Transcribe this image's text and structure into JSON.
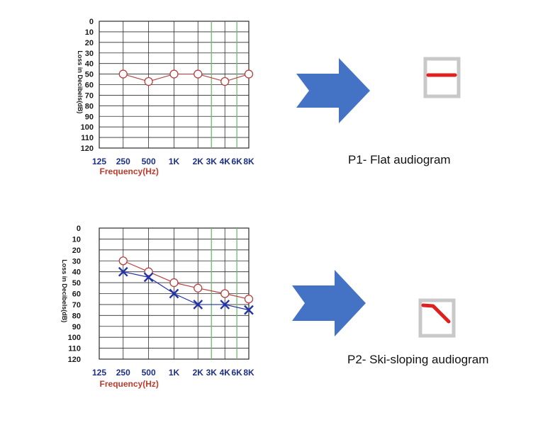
{
  "colors": {
    "grid": "#2b2b2b",
    "green_line": "#6abf69",
    "right_ear": "#b84040",
    "left_ear": "#2233aa",
    "arrow": "#4472c4",
    "icon_frame": "#c8c8c8",
    "icon_line": "#e02020",
    "x_tick": "#1c2f86",
    "x_title": "#c0392b"
  },
  "panels": [
    {
      "caption": "P1- Flat audiogram",
      "icon": "flat-audiogram-icon"
    },
    {
      "caption": "P2- Ski-sloping audiogram",
      "icon": "ski-slope-audiogram-icon"
    }
  ],
  "chart_data": [
    {
      "type": "line",
      "xlabel": "Frequency(Hz)",
      "ylabel": "Loss in Decibels(dB)",
      "x_ticks": [
        "125",
        "250",
        "500",
        "1K",
        "2K",
        "3K",
        "4K",
        "6K",
        "8K"
      ],
      "x_tick_fracs": [
        0.0,
        0.16,
        0.33,
        0.5,
        0.66,
        0.75,
        0.84,
        0.92,
        1.0
      ],
      "x_highlight_ticks": [
        "3K",
        "6K"
      ],
      "y_ticks": [
        0,
        10,
        20,
        30,
        40,
        50,
        60,
        70,
        80,
        90,
        100,
        110,
        120
      ],
      "ylim": [
        0,
        120
      ],
      "y_inverted": true,
      "grid": true,
      "series": [
        {
          "marker": "circle",
          "color": "#b84040",
          "x": [
            "250",
            "500",
            "1K",
            "2K",
            "4K",
            "8K"
          ],
          "values": [
            50,
            57,
            50,
            50,
            57,
            50
          ]
        }
      ]
    },
    {
      "type": "line",
      "xlabel": "Frequency(Hz)",
      "ylabel": "Loss in Decibels(dB)",
      "x_ticks": [
        "125",
        "250",
        "500",
        "1K",
        "2K",
        "3K",
        "4K",
        "6K",
        "8K"
      ],
      "x_tick_fracs": [
        0.0,
        0.16,
        0.33,
        0.5,
        0.66,
        0.75,
        0.84,
        0.92,
        1.0
      ],
      "x_highlight_ticks": [
        "3K",
        "6K"
      ],
      "y_ticks": [
        0,
        10,
        20,
        30,
        40,
        50,
        60,
        70,
        80,
        90,
        100,
        110,
        120
      ],
      "ylim": [
        0,
        120
      ],
      "y_inverted": true,
      "grid": true,
      "series": [
        {
          "marker": "circle",
          "color": "#b84040",
          "x": [
            "250",
            "500",
            "1K",
            "2K",
            "4K",
            "8K"
          ],
          "values": [
            30,
            40,
            50,
            55,
            60,
            65
          ]
        },
        {
          "marker": "x",
          "color": "#2233aa",
          "x": [
            "250",
            "500",
            "1K",
            "2K",
            "4K",
            "8K"
          ],
          "values": [
            40,
            45,
            60,
            70,
            70,
            75
          ]
        }
      ]
    }
  ]
}
